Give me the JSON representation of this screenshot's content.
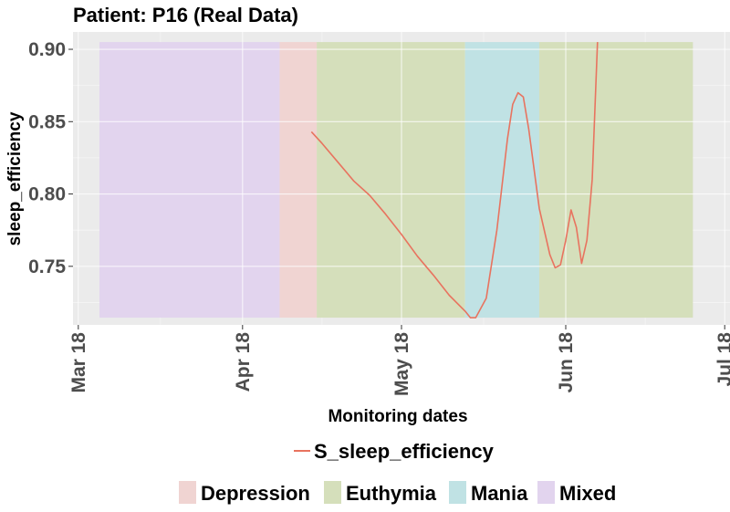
{
  "chart_data": {
    "type": "line",
    "title": "Patient: P16 (Real Data)",
    "xlabel": "Monitoring dates",
    "ylabel": "sleep_efficiency",
    "x_axis_type": "date",
    "xlim": [
      "2018-02-28",
      "2018-07-02"
    ],
    "ylim": [
      0.7095,
      0.912
    ],
    "x_ticks": [
      {
        "date": "2018-03-01",
        "label": "Mar 18"
      },
      {
        "date": "2018-04-01",
        "label": "Apr 18"
      },
      {
        "date": "2018-05-01",
        "label": "May 18"
      },
      {
        "date": "2018-06-01",
        "label": "Jun 18"
      },
      {
        "date": "2018-07-01",
        "label": "Jul 18"
      }
    ],
    "y_ticks": [
      0.75,
      0.8,
      0.85,
      0.9
    ],
    "y_tick_labels": [
      "0.75",
      "0.80",
      "0.85",
      "0.90"
    ],
    "grid": true,
    "legend_position": "bottom",
    "mood_bands": {
      "ymin": 0.7145,
      "ymax": 0.905,
      "periods": [
        {
          "mood": "Mixed",
          "start": "2018-03-05",
          "end": "2018-04-08"
        },
        {
          "mood": "Depression",
          "start": "2018-04-08",
          "end": "2018-04-15"
        },
        {
          "mood": "Euthymia",
          "start": "2018-04-15",
          "end": "2018-05-13"
        },
        {
          "mood": "Mania",
          "start": "2018-05-13",
          "end": "2018-05-27"
        },
        {
          "mood": "Euthymia",
          "start": "2018-05-27",
          "end": "2018-06-25"
        }
      ]
    },
    "mood_colors": {
      "Depression": "#f0d4d2",
      "Euthymia": "#d5dfbb",
      "Mania": "#c0e2e4",
      "Mixed": "#e2d4ee"
    },
    "series": [
      {
        "name": "S_sleep_efficiency",
        "color": "#e8735f",
        "points": [
          [
            "2018-04-14",
            0.843
          ],
          [
            "2018-04-16",
            0.835
          ],
          [
            "2018-04-19",
            0.822
          ],
          [
            "2018-04-22",
            0.809
          ],
          [
            "2018-04-25",
            0.799
          ],
          [
            "2018-04-28",
            0.786
          ],
          [
            "2018-05-01",
            0.772
          ],
          [
            "2018-05-04",
            0.757
          ],
          [
            "2018-05-07",
            0.744
          ],
          [
            "2018-05-10",
            0.73
          ],
          [
            "2018-05-13",
            0.719
          ],
          [
            "2018-05-14",
            0.7145
          ],
          [
            "2018-05-15",
            0.7145
          ],
          [
            "2018-05-17",
            0.728
          ],
          [
            "2018-05-19",
            0.775
          ],
          [
            "2018-05-21",
            0.838
          ],
          [
            "2018-05-22",
            0.862
          ],
          [
            "2018-05-23",
            0.87
          ],
          [
            "2018-05-24",
            0.867
          ],
          [
            "2018-05-25",
            0.845
          ],
          [
            "2018-05-27",
            0.79
          ],
          [
            "2018-05-29",
            0.758
          ],
          [
            "2018-05-30",
            0.749
          ],
          [
            "2018-05-31",
            0.751
          ],
          [
            "2018-06-01",
            0.768
          ],
          [
            "2018-06-02",
            0.789
          ],
          [
            "2018-06-03",
            0.777
          ],
          [
            "2018-06-04",
            0.752
          ],
          [
            "2018-06-05",
            0.768
          ],
          [
            "2018-06-06",
            0.81
          ],
          [
            "2018-06-07",
            0.905
          ]
        ]
      }
    ]
  },
  "legend": {
    "line_label": "S_sleep_efficiency",
    "moods": [
      {
        "label": "Depression"
      },
      {
        "label": "Euthymia"
      },
      {
        "label": "Mania"
      },
      {
        "label": "Mixed"
      }
    ]
  }
}
